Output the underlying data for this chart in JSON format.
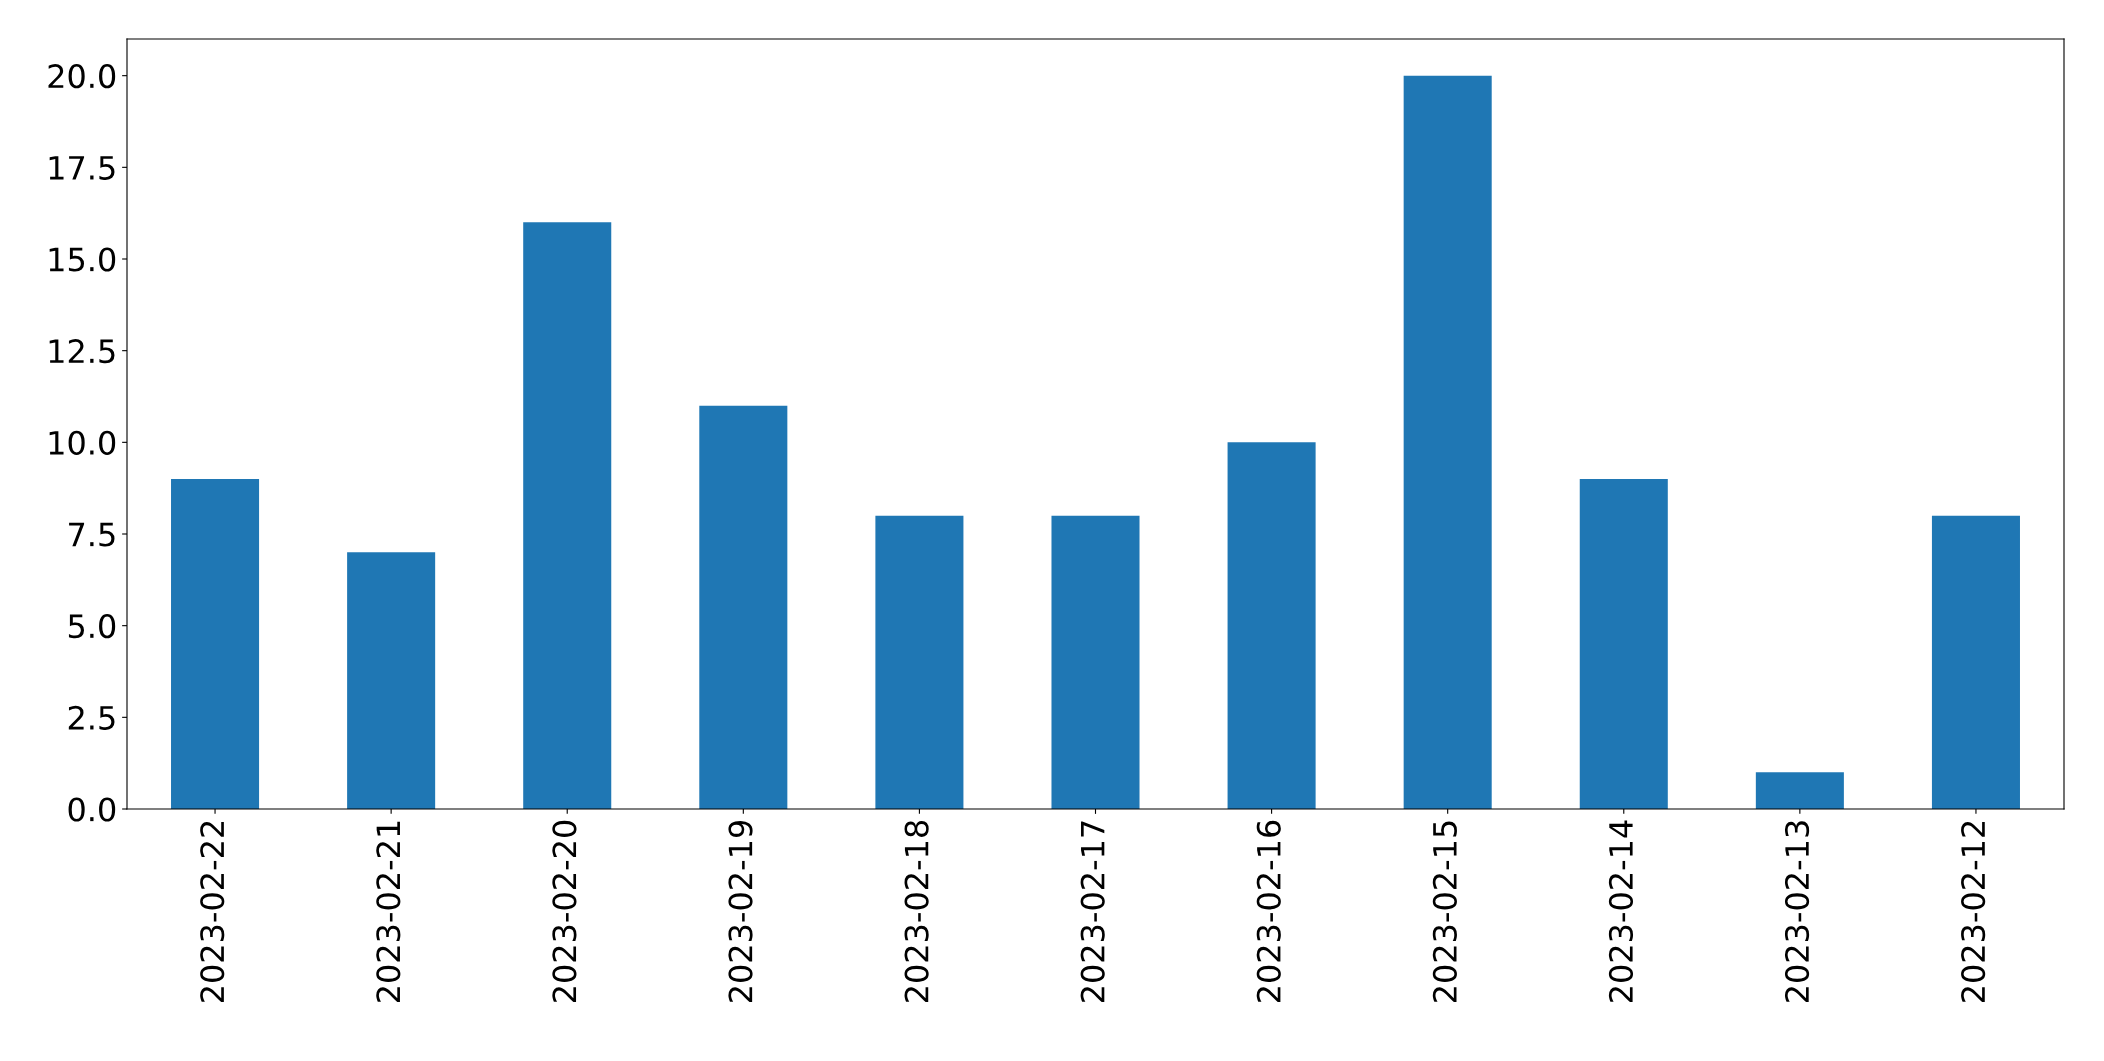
{
  "chart_data": {
    "type": "bar",
    "categories": [
      "2023-02-22",
      "2023-02-21",
      "2023-02-20",
      "2023-02-19",
      "2023-02-18",
      "2023-02-17",
      "2023-02-16",
      "2023-02-15",
      "2023-02-14",
      "2023-02-13",
      "2023-02-12"
    ],
    "values": [
      9,
      7,
      16,
      11,
      8,
      8,
      10,
      20,
      9,
      1,
      8
    ],
    "color": "#1f77b4",
    "ylim": [
      0,
      21
    ],
    "yticks": [
      {
        "value": 0,
        "label": "0.0"
      },
      {
        "value": 2.5,
        "label": "2.5"
      },
      {
        "value": 5,
        "label": "5.0"
      },
      {
        "value": 7.5,
        "label": "7.5"
      },
      {
        "value": 10,
        "label": "10.0"
      },
      {
        "value": 12.5,
        "label": "12.5"
      },
      {
        "value": 15,
        "label": "15.0"
      },
      {
        "value": 17.5,
        "label": "17.5"
      },
      {
        "value": 20,
        "label": "20.0"
      }
    ],
    "grid": false
  }
}
